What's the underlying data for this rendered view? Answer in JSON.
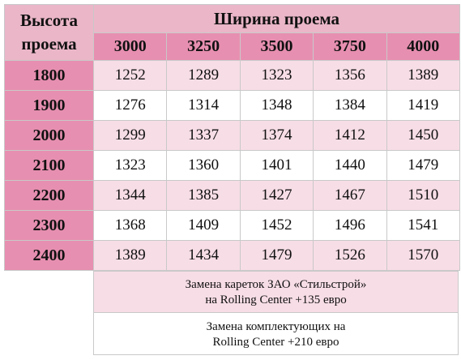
{
  "table": {
    "corner_label_line1": "Высота",
    "corner_label_line2": "проема",
    "group_header": "Ширина проема",
    "columns": [
      "3000",
      "3250",
      "3500",
      "3750",
      "4000"
    ],
    "rows": [
      {
        "height": "1800",
        "values": [
          "1252",
          "1289",
          "1323",
          "1356",
          "1389"
        ]
      },
      {
        "height": "1900",
        "values": [
          "1276",
          "1314",
          "1348",
          "1384",
          "1419"
        ]
      },
      {
        "height": "2000",
        "values": [
          "1299",
          "1337",
          "1374",
          "1412",
          "1450"
        ]
      },
      {
        "height": "2100",
        "values": [
          "1323",
          "1360",
          "1401",
          "1440",
          "1479"
        ]
      },
      {
        "height": "2200",
        "values": [
          "1344",
          "1385",
          "1427",
          "1467",
          "1510"
        ]
      },
      {
        "height": "2300",
        "values": [
          "1368",
          "1409",
          "1452",
          "1496",
          "1541"
        ]
      },
      {
        "height": "2400",
        "values": [
          "1389",
          "1434",
          "1479",
          "1526",
          "1570"
        ]
      }
    ]
  },
  "notes": {
    "note1_line1": "Замена кареток ЗАО «Стильстрой»",
    "note1_line2": "на Rolling Center +135 евро",
    "note2_line1": "Замена комплектующих на",
    "note2_line2": "Rolling Center +210 евро"
  },
  "colors": {
    "header_light": "#eab6c8",
    "header_dark": "#e78fb0",
    "row_pink": "#f7dde6",
    "row_white": "#ffffff"
  }
}
